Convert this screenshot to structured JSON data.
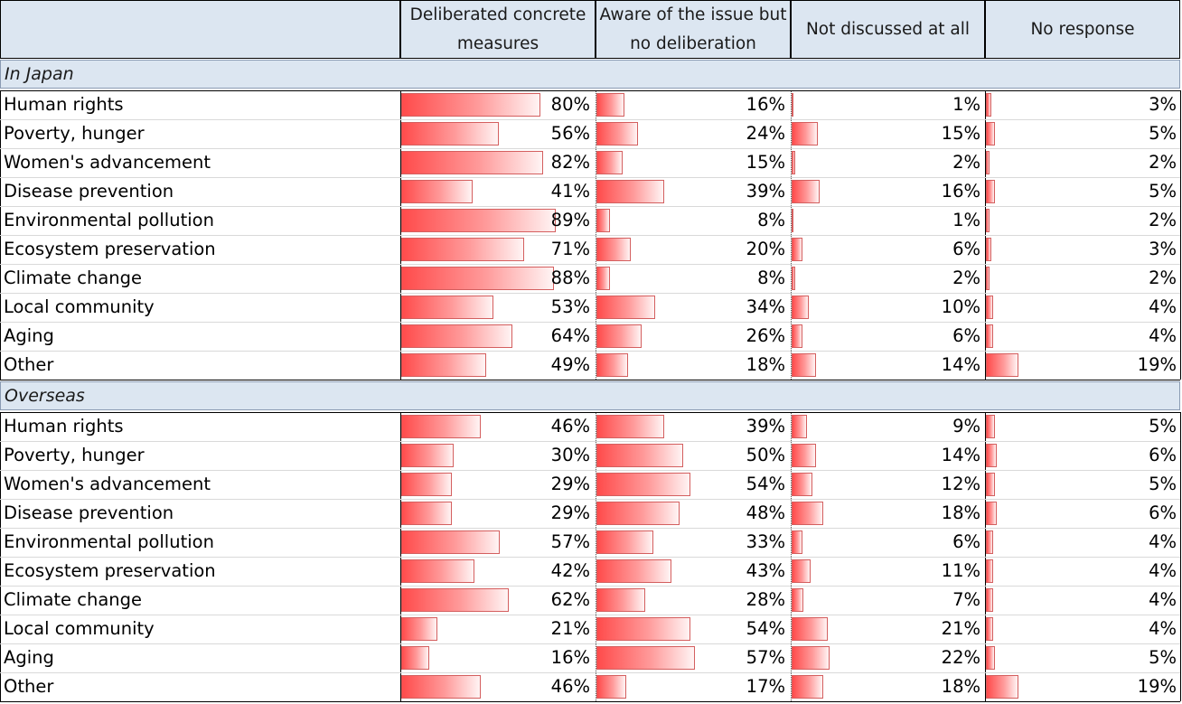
{
  "chart_data": {
    "type": "table",
    "columns": [
      "Deliberated concrete measures",
      "Aware of the issue but no deliberation",
      "Not discussed at all",
      "No response"
    ],
    "sections": [
      {
        "name": "In Japan",
        "rows": [
          {
            "label": "Human rights",
            "values": [
              80,
              16,
              1,
              3
            ]
          },
          {
            "label": "Poverty, hunger",
            "values": [
              56,
              24,
              15,
              5
            ]
          },
          {
            "label": "Women's advancement",
            "values": [
              82,
              15,
              2,
              2
            ]
          },
          {
            "label": "Disease prevention",
            "values": [
              41,
              39,
              16,
              5
            ]
          },
          {
            "label": "Environmental pollution",
            "values": [
              89,
              8,
              1,
              2
            ]
          },
          {
            "label": "Ecosystem preservation",
            "values": [
              71,
              20,
              6,
              3
            ]
          },
          {
            "label": "Climate change",
            "values": [
              88,
              8,
              2,
              2
            ]
          },
          {
            "label": "Local community",
            "values": [
              53,
              34,
              10,
              4
            ]
          },
          {
            "label": "Aging",
            "values": [
              64,
              26,
              6,
              4
            ]
          },
          {
            "label": "Other",
            "values": [
              49,
              18,
              14,
              19
            ]
          }
        ]
      },
      {
        "name": "Overseas",
        "rows": [
          {
            "label": "Human rights",
            "values": [
              46,
              39,
              9,
              5
            ]
          },
          {
            "label": "Poverty, hunger",
            "values": [
              30,
              50,
              14,
              6
            ]
          },
          {
            "label": "Women's advancement",
            "values": [
              29,
              54,
              12,
              5
            ]
          },
          {
            "label": "Disease prevention",
            "values": [
              29,
              48,
              18,
              6
            ]
          },
          {
            "label": "Environmental pollution",
            "values": [
              57,
              33,
              6,
              4
            ]
          },
          {
            "label": "Ecosystem preservation",
            "values": [
              42,
              43,
              11,
              4
            ]
          },
          {
            "label": "Climate change",
            "values": [
              62,
              28,
              7,
              4
            ]
          },
          {
            "label": "Local community",
            "values": [
              21,
              54,
              21,
              4
            ]
          },
          {
            "label": "Aging",
            "values": [
              16,
              57,
              22,
              5
            ]
          },
          {
            "label": "Other",
            "values": [
              46,
              17,
              18,
              19
            ]
          }
        ]
      }
    ],
    "value_suffix": "%",
    "bar_color": "#ff4b4b",
    "header_color": "#dce6f1"
  }
}
